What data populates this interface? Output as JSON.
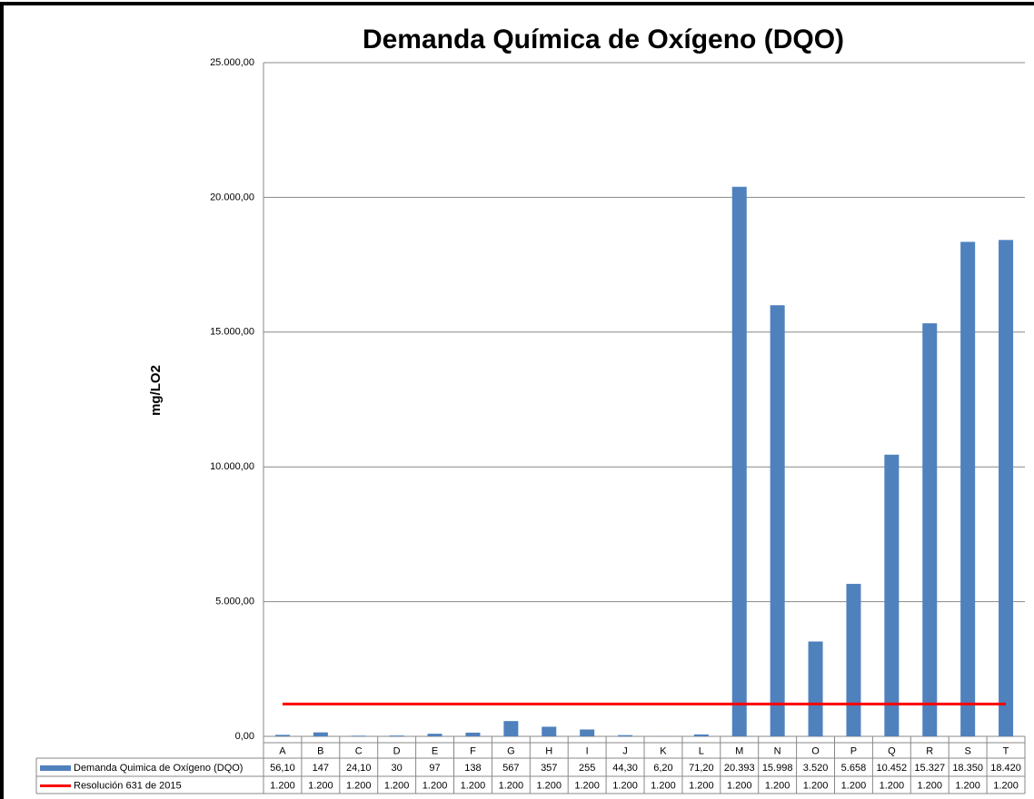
{
  "chart_data": {
    "type": "bar",
    "title": "Demanda Química de Oxígeno (DQO)",
    "y_label": "mg/LO2",
    "categories": [
      "A",
      "B",
      "C",
      "D",
      "E",
      "F",
      "G",
      "H",
      "I",
      "J",
      "K",
      "L",
      "M",
      "N",
      "O",
      "P",
      "Q",
      "R",
      "S",
      "T"
    ],
    "series": [
      {
        "name": "Demanda Quimica de Oxígeno (DQO)",
        "type": "bar",
        "color": "#4f81bd",
        "values": [
          56.1,
          147,
          24.1,
          30,
          97,
          138,
          567,
          357,
          255,
          44.3,
          6.2,
          71.2,
          20393,
          15998,
          3520,
          5658,
          10452,
          15327,
          18350,
          18420
        ],
        "value_labels": [
          "56,10",
          "147",
          "24,10",
          "30",
          "97",
          "138",
          "567",
          "357",
          "255",
          "44,30",
          "6,20",
          "71,20",
          "20.393",
          "15.998",
          "3.520",
          "5.658",
          "10.452",
          "15.327",
          "18.350",
          "18.420"
        ]
      },
      {
        "name": "Resolución 631 de 2015",
        "type": "line",
        "color": "#ff0000",
        "values": [
          1200,
          1200,
          1200,
          1200,
          1200,
          1200,
          1200,
          1200,
          1200,
          1200,
          1200,
          1200,
          1200,
          1200,
          1200,
          1200,
          1200,
          1200,
          1200,
          1200
        ],
        "value_labels": [
          "1.200",
          "1.200",
          "1.200",
          "1.200",
          "1.200",
          "1.200",
          "1.200",
          "1.200",
          "1.200",
          "1.200",
          "1.200",
          "1.200",
          "1.200",
          "1.200",
          "1.200",
          "1.200",
          "1.200",
          "1.200",
          "1.200",
          "1.200"
        ]
      }
    ],
    "ylim": [
      0,
      25000
    ],
    "yticks": [
      {
        "value": 0,
        "label": "0,00"
      },
      {
        "value": 5000,
        "label": "5.000,00"
      },
      {
        "value": 10000,
        "label": "10.000,00"
      },
      {
        "value": 15000,
        "label": "15.000,00"
      },
      {
        "value": 20000,
        "label": "20.000,00"
      },
      {
        "value": 25000,
        "label": "25.000,00"
      }
    ],
    "grid": true
  }
}
